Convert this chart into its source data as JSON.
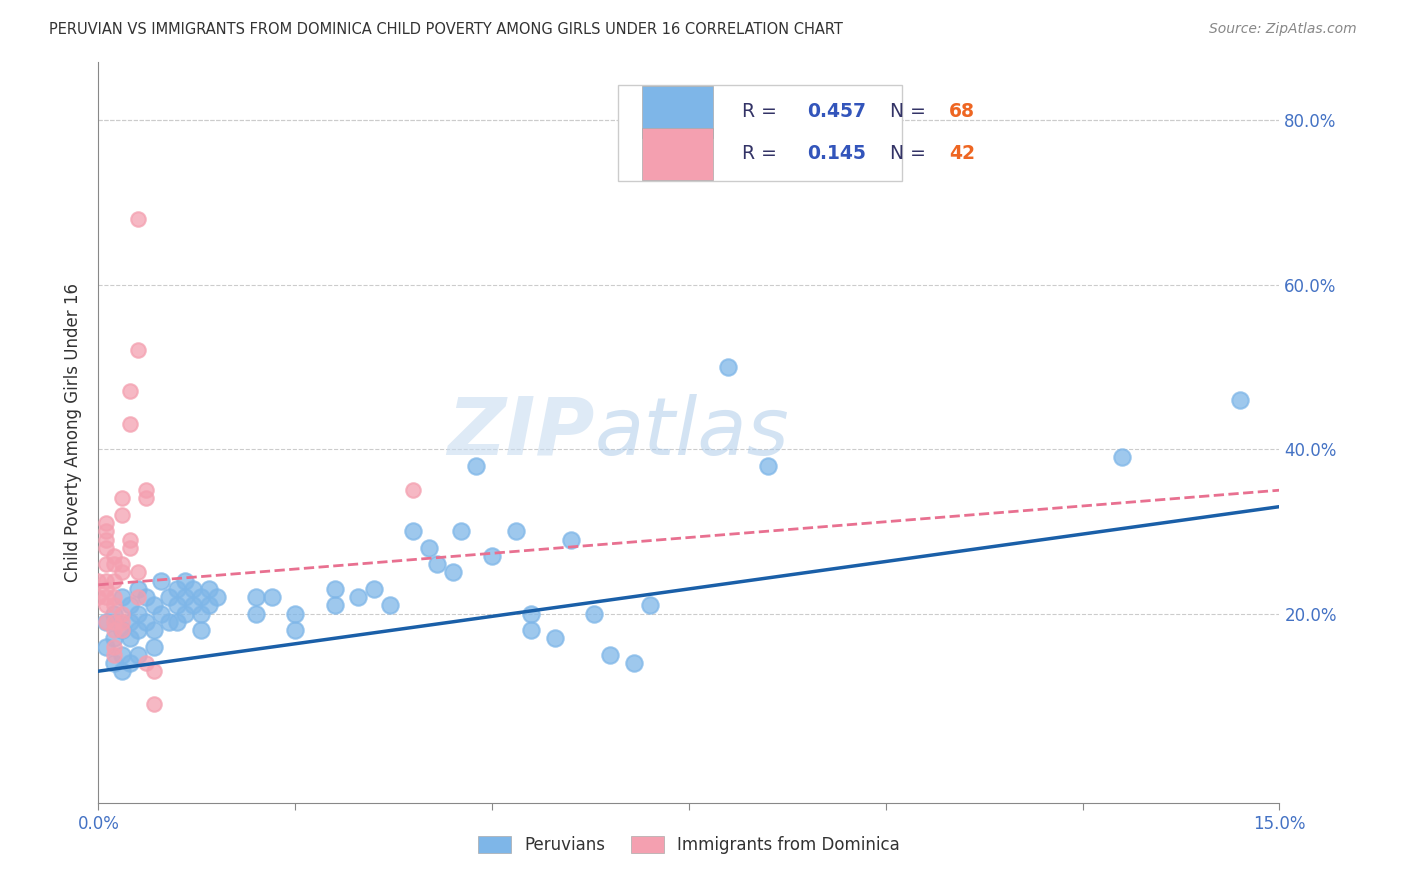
{
  "title": "PERUVIAN VS IMMIGRANTS FROM DOMINICA CHILD POVERTY AMONG GIRLS UNDER 16 CORRELATION CHART",
  "source": "Source: ZipAtlas.com",
  "ylabel": "Child Poverty Among Girls Under 16",
  "xmin": 0.0,
  "xmax": 0.15,
  "ymin": -0.03,
  "ymax": 0.87,
  "blue_R": 0.457,
  "blue_N": 68,
  "pink_R": 0.145,
  "pink_N": 42,
  "blue_color": "#7EB6E8",
  "pink_color": "#F4A0B0",
  "blue_line_color": "#1A5FA8",
  "pink_line_color": "#E87090",
  "legend_label_blue": "Peruvians",
  "legend_label_pink": "Immigrants from Dominica",
  "watermark_zip": "ZIP",
  "watermark_atlas": "atlas",
  "blue_points": [
    [
      0.001,
      0.19
    ],
    [
      0.001,
      0.16
    ],
    [
      0.002,
      0.2
    ],
    [
      0.002,
      0.17
    ],
    [
      0.002,
      0.14
    ],
    [
      0.003,
      0.22
    ],
    [
      0.003,
      0.18
    ],
    [
      0.003,
      0.15
    ],
    [
      0.003,
      0.13
    ],
    [
      0.004,
      0.21
    ],
    [
      0.004,
      0.19
    ],
    [
      0.004,
      0.17
    ],
    [
      0.004,
      0.14
    ],
    [
      0.005,
      0.23
    ],
    [
      0.005,
      0.2
    ],
    [
      0.005,
      0.18
    ],
    [
      0.005,
      0.15
    ],
    [
      0.006,
      0.22
    ],
    [
      0.006,
      0.19
    ],
    [
      0.007,
      0.21
    ],
    [
      0.007,
      0.18
    ],
    [
      0.007,
      0.16
    ],
    [
      0.008,
      0.2
    ],
    [
      0.008,
      0.24
    ],
    [
      0.009,
      0.22
    ],
    [
      0.009,
      0.19
    ],
    [
      0.01,
      0.21
    ],
    [
      0.01,
      0.19
    ],
    [
      0.01,
      0.23
    ],
    [
      0.011,
      0.24
    ],
    [
      0.011,
      0.22
    ],
    [
      0.011,
      0.2
    ],
    [
      0.012,
      0.23
    ],
    [
      0.012,
      0.21
    ],
    [
      0.013,
      0.22
    ],
    [
      0.013,
      0.2
    ],
    [
      0.013,
      0.18
    ],
    [
      0.014,
      0.23
    ],
    [
      0.014,
      0.21
    ],
    [
      0.015,
      0.22
    ],
    [
      0.02,
      0.22
    ],
    [
      0.02,
      0.2
    ],
    [
      0.022,
      0.22
    ],
    [
      0.025,
      0.2
    ],
    [
      0.025,
      0.18
    ],
    [
      0.03,
      0.23
    ],
    [
      0.03,
      0.21
    ],
    [
      0.033,
      0.22
    ],
    [
      0.035,
      0.23
    ],
    [
      0.037,
      0.21
    ],
    [
      0.04,
      0.3
    ],
    [
      0.042,
      0.28
    ],
    [
      0.043,
      0.26
    ],
    [
      0.045,
      0.25
    ],
    [
      0.046,
      0.3
    ],
    [
      0.048,
      0.38
    ],
    [
      0.05,
      0.27
    ],
    [
      0.053,
      0.3
    ],
    [
      0.055,
      0.2
    ],
    [
      0.055,
      0.18
    ],
    [
      0.058,
      0.17
    ],
    [
      0.06,
      0.29
    ],
    [
      0.063,
      0.2
    ],
    [
      0.065,
      0.15
    ],
    [
      0.068,
      0.14
    ],
    [
      0.07,
      0.21
    ],
    [
      0.08,
      0.5
    ],
    [
      0.085,
      0.38
    ],
    [
      0.13,
      0.39
    ],
    [
      0.145,
      0.46
    ]
  ],
  "pink_points": [
    [
      0.0,
      0.24
    ],
    [
      0.0,
      0.22
    ],
    [
      0.001,
      0.28
    ],
    [
      0.001,
      0.26
    ],
    [
      0.001,
      0.24
    ],
    [
      0.001,
      0.22
    ],
    [
      0.001,
      0.21
    ],
    [
      0.001,
      0.19
    ],
    [
      0.001,
      0.23
    ],
    [
      0.001,
      0.3
    ],
    [
      0.002,
      0.26
    ],
    [
      0.002,
      0.24
    ],
    [
      0.002,
      0.21
    ],
    [
      0.002,
      0.19
    ],
    [
      0.002,
      0.16
    ],
    [
      0.002,
      0.18
    ],
    [
      0.002,
      0.22
    ],
    [
      0.003,
      0.25
    ],
    [
      0.003,
      0.2
    ],
    [
      0.003,
      0.18
    ],
    [
      0.003,
      0.32
    ],
    [
      0.003,
      0.26
    ],
    [
      0.003,
      0.34
    ],
    [
      0.004,
      0.43
    ],
    [
      0.004,
      0.47
    ],
    [
      0.004,
      0.29
    ],
    [
      0.004,
      0.28
    ],
    [
      0.005,
      0.68
    ],
    [
      0.005,
      0.52
    ],
    [
      0.005,
      0.25
    ],
    [
      0.005,
      0.22
    ],
    [
      0.006,
      0.34
    ],
    [
      0.006,
      0.14
    ],
    [
      0.006,
      0.35
    ],
    [
      0.007,
      0.09
    ],
    [
      0.007,
      0.13
    ],
    [
      0.001,
      0.29
    ],
    [
      0.001,
      0.31
    ],
    [
      0.002,
      0.27
    ],
    [
      0.002,
      0.15
    ],
    [
      0.04,
      0.35
    ],
    [
      0.003,
      0.19
    ]
  ],
  "blue_trend_x0": 0.0,
  "blue_trend_y0": 0.13,
  "blue_trend_x1": 0.15,
  "blue_trend_y1": 0.33,
  "pink_trend_x0": 0.0,
  "pink_trend_y0": 0.235,
  "pink_trend_x1": 0.15,
  "pink_trend_y1": 0.35
}
